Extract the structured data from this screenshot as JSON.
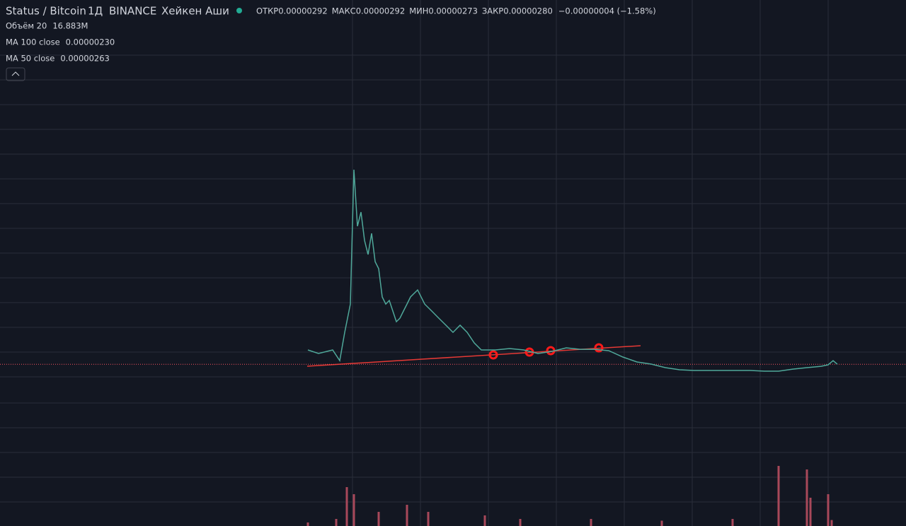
{
  "header": {
    "symbol": "Status / Bitcoin",
    "interval": "1Д",
    "exchange": "BINANCE",
    "chart_style": "Хейкен Аши",
    "ohlc": [
      {
        "label": "ОТКР",
        "value": "0.00000292"
      },
      {
        "label": "МАКС",
        "value": "0.00000292"
      },
      {
        "label": "МИН",
        "value": "0.00000273"
      },
      {
        "label": "ЗАКР",
        "value": "0.00000280"
      }
    ],
    "change": "−0.00000004 (−1.58%)"
  },
  "indicators": [
    {
      "name": "Объём 20",
      "value": "16.883M",
      "color": "#f7525f"
    },
    {
      "name": "MA 100 close",
      "value": "0.00000230",
      "color": "#22ab94"
    },
    {
      "name": "MA 50 close",
      "value": "0.00000263",
      "color": "#ff6d00"
    }
  ],
  "chart_data": {
    "type": "line",
    "x": [
      0,
      15,
      35,
      45,
      52,
      60,
      65,
      70,
      75,
      80,
      85,
      90,
      95,
      100,
      105,
      110,
      115,
      120,
      125,
      130,
      135,
      140,
      145,
      155,
      165,
      175,
      185,
      195,
      205,
      215,
      225,
      235,
      245,
      265,
      285,
      305,
      325,
      345,
      365,
      385,
      405,
      425,
      445,
      465,
      485,
      505,
      525,
      545,
      565,
      585,
      605,
      625,
      645,
      665,
      685,
      705,
      725,
      735,
      742,
      748
    ],
    "values": [
      406,
      375,
      406,
      312,
      562,
      812,
      2000,
      1500,
      1625,
      1375,
      1250,
      1437,
      1187,
      1125,
      875,
      812,
      844,
      750,
      656,
      687,
      750,
      812,
      875,
      937,
      812,
      750,
      687,
      625,
      562,
      625,
      562,
      469,
      406,
      406,
      419,
      406,
      375,
      394,
      425,
      412,
      412,
      400,
      344,
      300,
      281,
      250,
      231,
      225,
      225,
      225,
      225,
      225,
      219,
      219,
      237,
      250,
      262,
      275,
      312,
      280
    ],
    "color": "#4fa89a",
    "xlim": [
      -435,
      845
    ],
    "ylim": [
      0,
      3500
    ],
    "volume": {
      "x": [
        0,
        40,
        55,
        65,
        100,
        140,
        170,
        250,
        300,
        400,
        500,
        600,
        665,
        705,
        710,
        735,
        740
      ],
      "values": [
        10,
        20,
        110,
        90,
        40,
        60,
        40,
        30,
        20,
        20,
        15,
        20,
        170,
        160,
        80,
        90,
        16.883
      ],
      "ylim": [
        0,
        400
      ],
      "color": "#a8485a"
    }
  }
}
